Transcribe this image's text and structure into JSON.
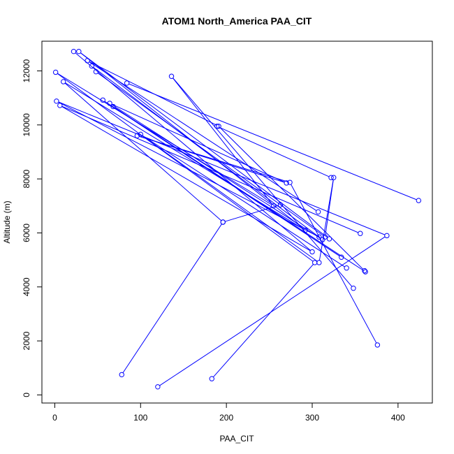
{
  "chart_data": {
    "type": "line",
    "title": "ATOM1 North_America PAA_CIT",
    "xlabel": "PAA_CIT",
    "ylabel": "Altitude (m)",
    "xlim": [
      -15,
      440
    ],
    "ylim": [
      -300,
      13100
    ],
    "xticks": [
      0,
      100,
      200,
      300,
      400
    ],
    "yticks": [
      0,
      2000,
      4000,
      6000,
      8000,
      10000,
      12000
    ],
    "grid": false,
    "color": "#0000ff",
    "series": [
      {
        "x": [
          78,
          196,
          10,
          292,
          28,
          320
        ],
        "y": [
          750,
          6400,
          11600,
          6100,
          12720,
          5780
        ]
      },
      {
        "x": [
          120,
          387,
          2,
          308
        ],
        "y": [
          300,
          5900,
          10880,
          5850
        ]
      },
      {
        "x": [
          183,
          303,
          1,
          255,
          136,
          348
        ],
        "y": [
          600,
          4900,
          11950,
          7000,
          11800,
          3950
        ]
      },
      {
        "x": [
          84,
          424
        ],
        "y": [
          11550,
          7200
        ]
      },
      {
        "x": [
          22,
          300,
          6,
          356
        ],
        "y": [
          12720,
          5300,
          10720,
          5980
        ]
      },
      {
        "x": [
          48,
          315,
          325,
          308,
          100,
          340
        ],
        "y": [
          11970,
          5850,
          8050,
          4900,
          9650,
          4700
        ]
      },
      {
        "x": [
          43,
          312,
          64,
          270,
          96,
          274,
          376
        ],
        "y": [
          12180,
          5750,
          10800,
          7850,
          9600,
          7870,
          1850
        ]
      },
      {
        "x": [
          56,
          334,
          68,
          362
        ],
        "y": [
          10920,
          5100,
          10680,
          4560
        ]
      },
      {
        "x": [
          307,
          38,
          191,
          361
        ],
        "y": [
          6780,
          12380,
          9950,
          4600
        ]
      },
      {
        "x": [
          322,
          189
        ],
        "y": [
          8050,
          9950
        ]
      },
      {
        "x": [
          263,
          196
        ],
        "y": [
          7040,
          6400
        ]
      }
    ]
  }
}
